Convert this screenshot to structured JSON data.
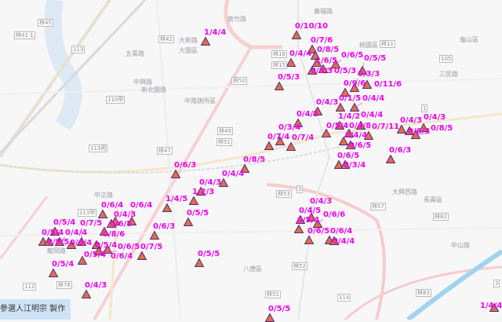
{
  "credit": "參選人江明宗 製作",
  "colors": {
    "marker_fill": "#e07040",
    "marker_stroke": "#4a2a8a",
    "label": "#f000f0"
  },
  "places": [
    "大新路",
    "五青路",
    "中興路",
    "中路旗所區",
    "大園區",
    "桃園區",
    "龜山區",
    "八德區",
    "新北園路",
    "中正路",
    "大興西路",
    "三民路",
    "中山路",
    "龍岡路",
    "南竹路",
    "長壽區",
    "廣福路"
  ],
  "shields": [
    "林41-1",
    "林45",
    "113",
    "110甲",
    "林42",
    "林50",
    "林49",
    "林51",
    "林47",
    "113丙",
    "林18",
    "林15",
    "林11",
    "105",
    "1",
    "2",
    "林53",
    "林57",
    "林82",
    "林52",
    "林51",
    "114",
    "林83",
    "3",
    "林76",
    "113甲",
    "112"
  ],
  "markers": [
    "1/4/4",
    "0/10/10",
    "0/7/6",
    "0/8/5",
    "1/6/5",
    "0/4/4",
    "0/6/5",
    "0/5/3",
    "0/5/3",
    "0/5/5",
    "0/5/3",
    "0/9/6",
    "0/3/3",
    "0/11/6",
    "0/4/3",
    "0/1/5",
    "0/4/4",
    "0/4/5",
    "1/4/2",
    "0/4/4",
    "0/4/8",
    "0/7/11",
    "0/5/4",
    "0/4/4",
    "0/4/3",
    "0/6/3",
    "0/4/3",
    "0/8/5",
    "0/7/4",
    "0/3/4",
    "0/7/4",
    "0/6/5",
    "0/6/3",
    "0/6/5",
    "0/3/4",
    "0/8/5",
    "0/6/3",
    "0/4/4",
    "0/4/3",
    "1/2/3",
    "1/4/5",
    "0/5/5",
    "0/4/5",
    "0/4/3",
    "0/6/6",
    "0/5/4",
    "0/6/5",
    "0/6/4",
    "0/4/4",
    "0/5/5",
    "0/7/5",
    "0/6/3",
    "0/6/4",
    "0/4/3",
    "0/6/4",
    "0/6/5",
    "0/8/6",
    "0/5/4",
    "0/5/4",
    "0/8/5",
    "0/4/4",
    "0/6/4",
    "0/7/5",
    "0/5/4",
    "0/6/4",
    "0/5/4",
    "0/6/5",
    "0/5/4",
    "0/4/3",
    "0/5/5",
    "1/4/4"
  ]
}
